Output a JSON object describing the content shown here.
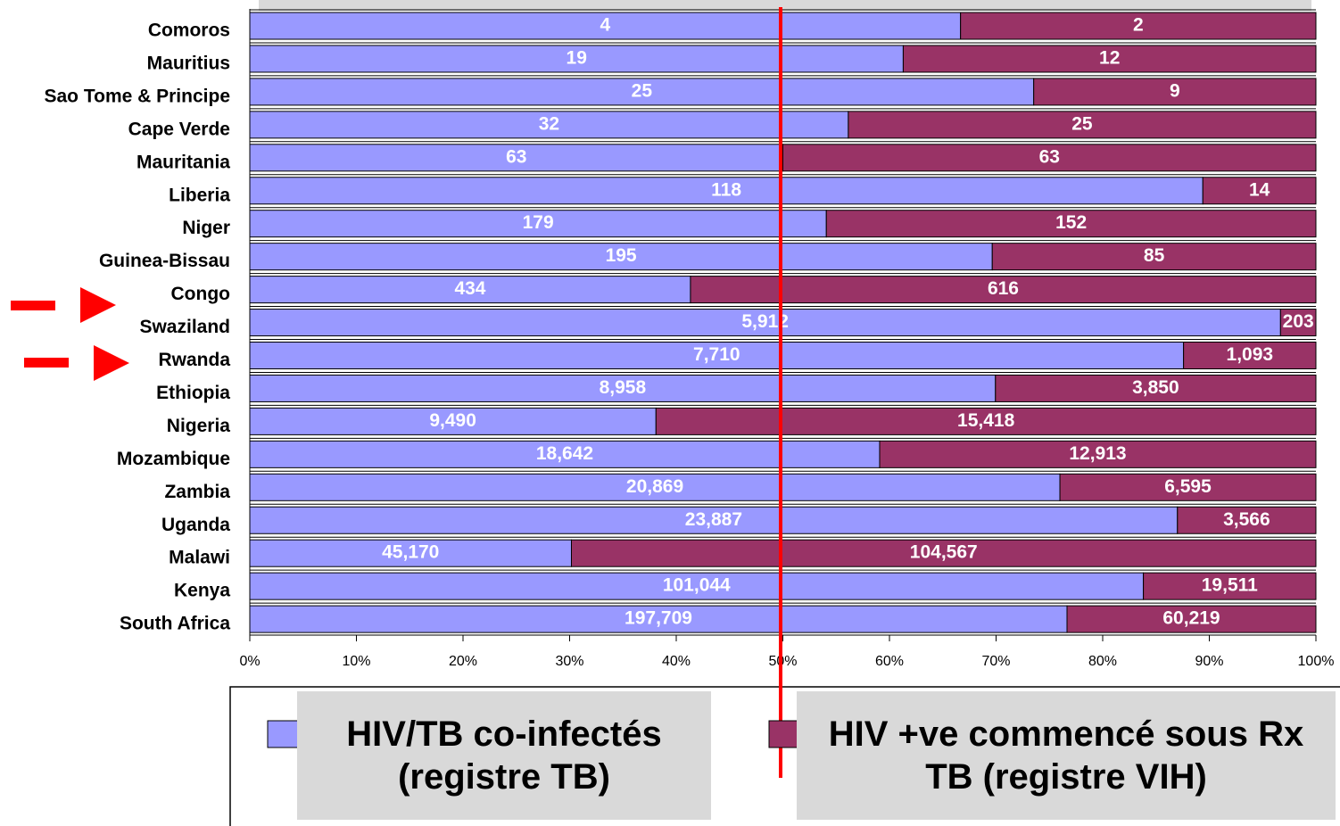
{
  "chart_data": {
    "type": "stacked_bar_100",
    "categories": [
      "Comoros",
      "Mauritius",
      "Sao Tome & Principe",
      "Cape Verde",
      "Mauritania",
      "Liberia",
      "Niger",
      "Guinea-Bissau",
      "Congo",
      "Swaziland",
      "Rwanda",
      "Ethiopia",
      "Nigeria",
      "Mozambique",
      "Zambia",
      "Uganda",
      "Malawi",
      "Kenya",
      "South Africa"
    ],
    "series": [
      {
        "name": "HIV/TB co-infectés (registre TB)",
        "color": "#9999ff",
        "values": [
          4,
          19,
          25,
          32,
          63,
          118,
          179,
          195,
          434,
          5912,
          7710,
          8958,
          9490,
          18642,
          20869,
          23887,
          45170,
          101044,
          197709
        ],
        "value_labels": [
          "4",
          "19",
          "25",
          "32",
          "63",
          "118",
          "179",
          "195",
          "434",
          "5,912",
          "7,710",
          "8,958",
          "9,490",
          "18,642",
          "20,869",
          "23,887",
          "45,170",
          "101,044",
          "197,709"
        ]
      },
      {
        "name": "HIV +ve commencé sous Rx TB (registre VIH)",
        "color": "#993366",
        "values": [
          2,
          12,
          9,
          25,
          63,
          14,
          152,
          85,
          616,
          203,
          1093,
          3850,
          15418,
          12913,
          6595,
          3566,
          104567,
          19511,
          60219
        ],
        "value_labels": [
          "2",
          "12",
          "9",
          "25",
          "63",
          "14",
          "152",
          "85",
          "616",
          "203",
          "1,093",
          "3,850",
          "15,418",
          "12,913",
          "6,595",
          "3,566",
          "104,567",
          "19,511",
          "60,219"
        ]
      }
    ],
    "xlim": [
      0,
      100
    ],
    "xticks": [
      {
        "value": 0,
        "label": "0%"
      },
      {
        "value": 10,
        "label": "10%"
      },
      {
        "value": 20,
        "label": "20%"
      },
      {
        "value": 30,
        "label": "30%"
      },
      {
        "value": 40,
        "label": "40%"
      },
      {
        "value": 50,
        "label": "50%"
      },
      {
        "value": 60,
        "label": "60%"
      },
      {
        "value": 70,
        "label": "70%"
      },
      {
        "value": 80,
        "label": "80%"
      },
      {
        "value": 90,
        "label": "90%"
      },
      {
        "value": 100,
        "label": "100%"
      }
    ]
  }
}
